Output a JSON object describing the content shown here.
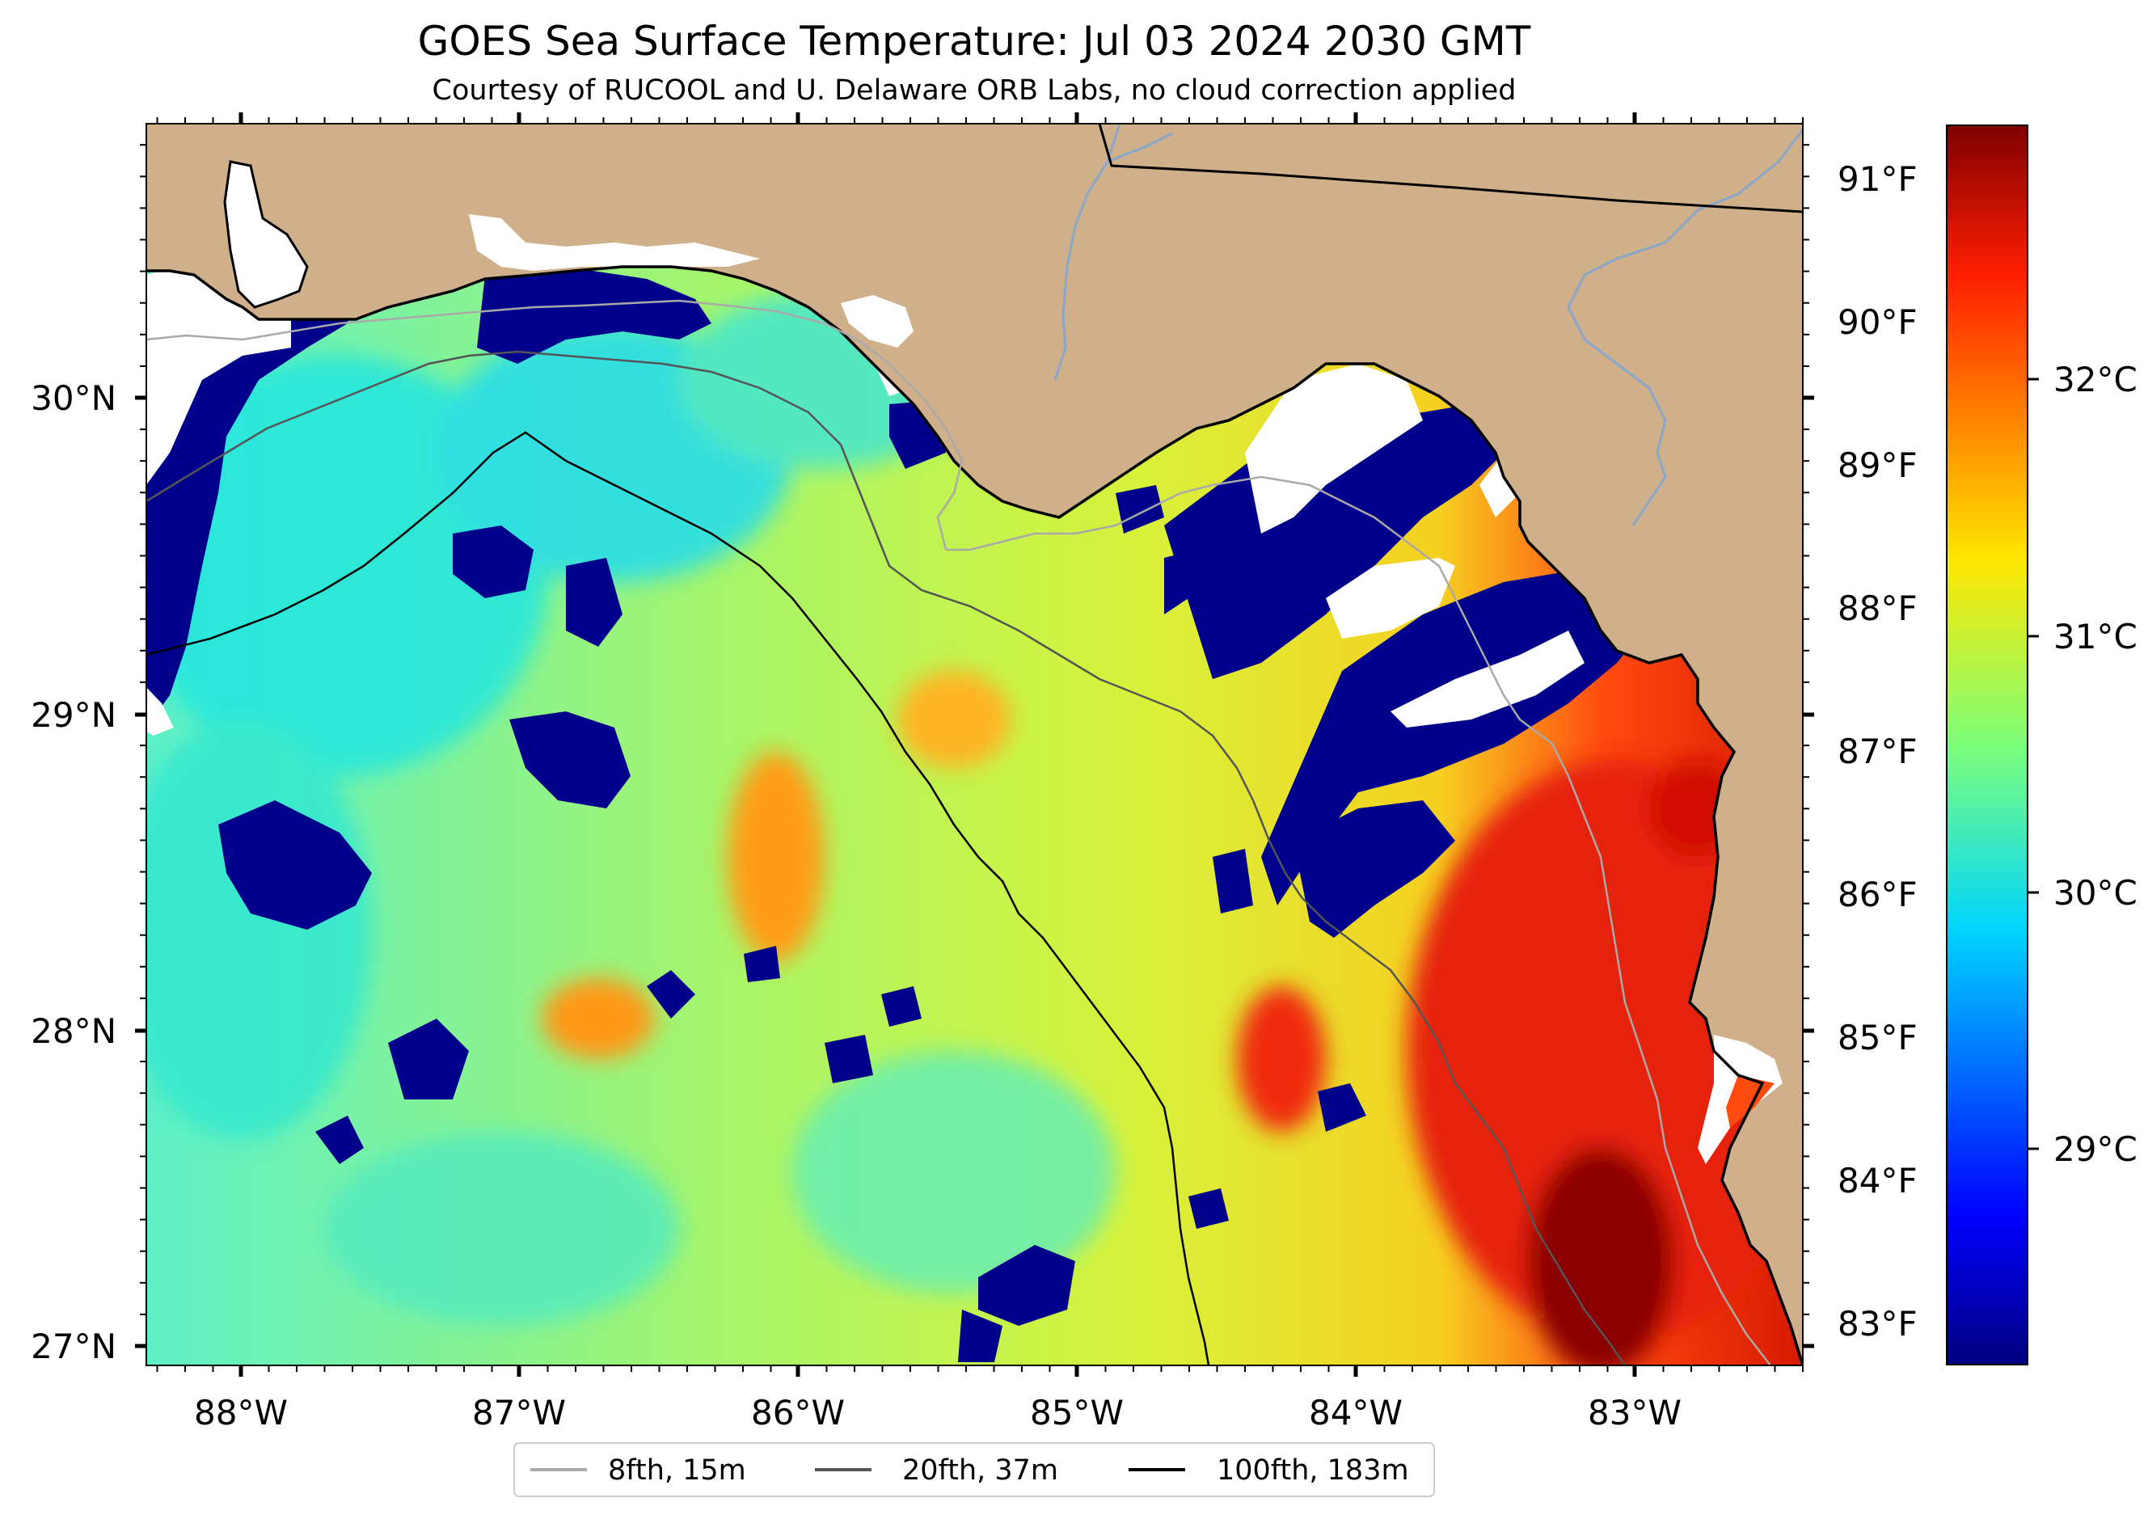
{
  "title": "GOES Sea Surface Temperature: Jul 03 2024 2030 GMT",
  "subtitle": "Courtesy of RUCOOL and U. Delaware ORB Labs, no cloud correction applied",
  "map": {
    "lon_labels": [
      "88°W",
      "87°W",
      "86°W",
      "85°W",
      "84°W",
      "83°W"
    ],
    "lat_labels": [
      "30°N",
      "29°N",
      "28°N",
      "27°N"
    ],
    "fahrenheit_labels": [
      "91°F",
      "90°F",
      "89°F",
      "88°F",
      "87°F",
      "86°F",
      "85°F",
      "84°F",
      "83°F"
    ],
    "colors": {
      "land": "#cfb08a",
      "cloud": "#ffffff",
      "cold": "#00008b",
      "warm": "#7f0000"
    }
  },
  "colorbar": {
    "labels": [
      "32°C",
      "31°C",
      "30°C",
      "29°C"
    ],
    "colormap": "jet"
  },
  "legend": {
    "items": [
      {
        "label": "8fth, 15m",
        "color": "#a9a9a9"
      },
      {
        "label": "20fth, 37m",
        "color": "#555555"
      },
      {
        "label": "100fth, 183m",
        "color": "#000000"
      }
    ]
  }
}
